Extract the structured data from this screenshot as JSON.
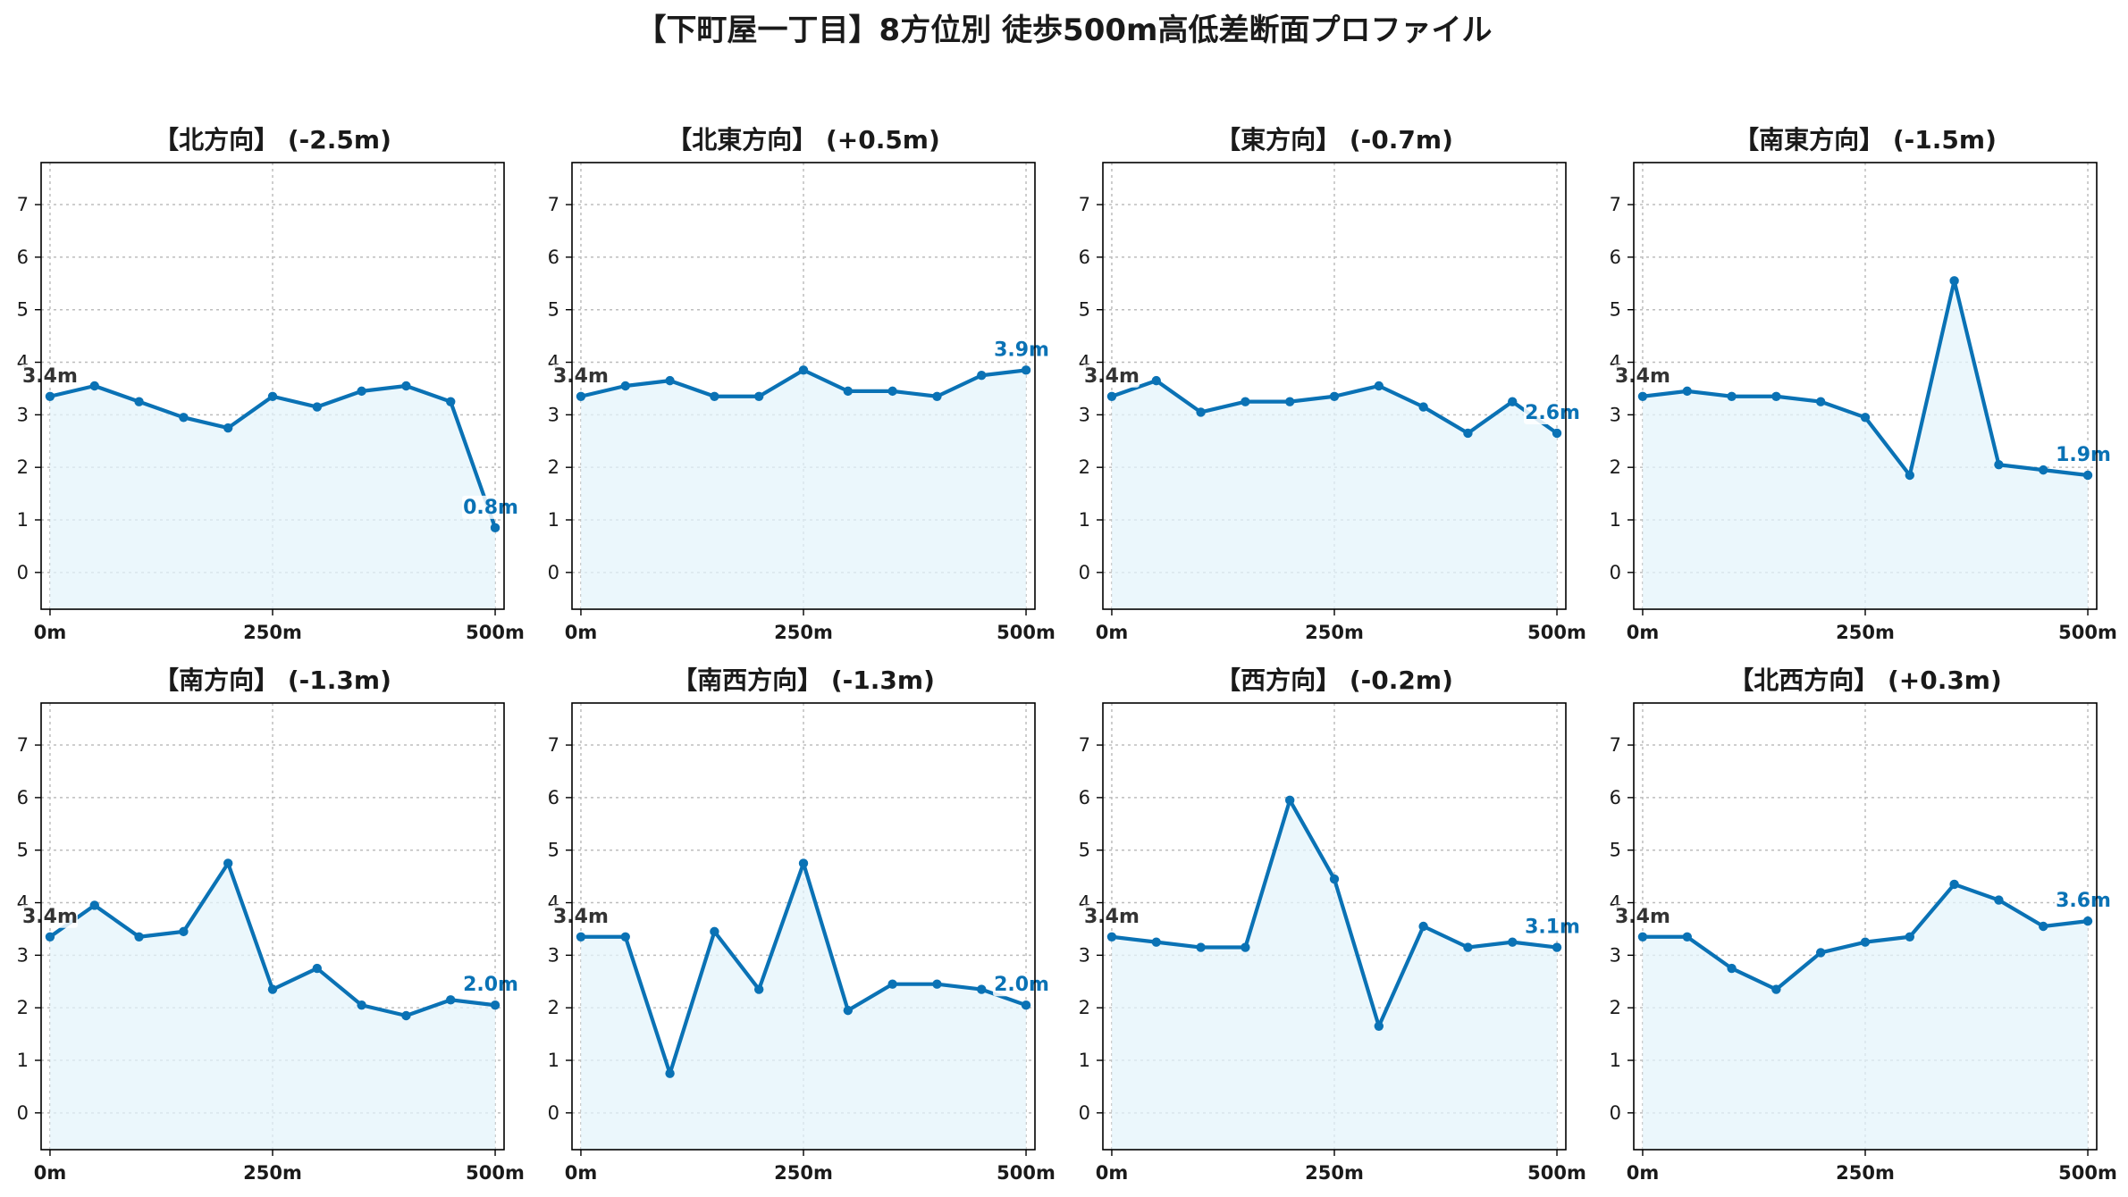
{
  "title": "【下町屋一丁目】8方位別 徒歩500m高低差断面プロファイル",
  "colors": {
    "line": "#0a72b5",
    "fill": "#e4f4fb",
    "start_label": "#333333"
  },
  "chart_data": [
    {
      "type": "area",
      "title": "【北方向】 (-2.5m)",
      "x": [
        0,
        50,
        100,
        150,
        200,
        250,
        300,
        350,
        400,
        450,
        500
      ],
      "values": [
        3.35,
        3.55,
        3.25,
        2.95,
        2.75,
        3.35,
        3.15,
        3.45,
        3.55,
        3.25,
        0.85
      ],
      "start_label": "3.4m",
      "end_label": "0.8m",
      "xticks": [
        "0m",
        "250m",
        "500m"
      ],
      "yticks": [
        "0",
        "1",
        "2",
        "3",
        "4",
        "5",
        "6",
        "7"
      ],
      "xlim": [
        -10,
        510
      ],
      "ylim": [
        -0.7,
        7.8
      ],
      "grid": true
    },
    {
      "type": "area",
      "title": "【北東方向】 (+0.5m)",
      "x": [
        0,
        50,
        100,
        150,
        200,
        250,
        300,
        350,
        400,
        450,
        500
      ],
      "values": [
        3.35,
        3.55,
        3.65,
        3.35,
        3.35,
        3.85,
        3.45,
        3.45,
        3.35,
        3.75,
        3.85
      ],
      "start_label": "3.4m",
      "end_label": "3.9m",
      "xticks": [
        "0m",
        "250m",
        "500m"
      ],
      "yticks": [
        "0",
        "1",
        "2",
        "3",
        "4",
        "5",
        "6",
        "7"
      ],
      "xlim": [
        -10,
        510
      ],
      "ylim": [
        -0.7,
        7.8
      ],
      "grid": true
    },
    {
      "type": "area",
      "title": "【東方向】 (-0.7m)",
      "x": [
        0,
        50,
        100,
        150,
        200,
        250,
        300,
        350,
        400,
        450,
        500
      ],
      "values": [
        3.35,
        3.65,
        3.05,
        3.25,
        3.25,
        3.35,
        3.55,
        3.15,
        2.65,
        3.25,
        2.65
      ],
      "start_label": "3.4m",
      "end_label": "2.6m",
      "xticks": [
        "0m",
        "250m",
        "500m"
      ],
      "yticks": [
        "0",
        "1",
        "2",
        "3",
        "4",
        "5",
        "6",
        "7"
      ],
      "xlim": [
        -10,
        510
      ],
      "ylim": [
        -0.7,
        7.8
      ],
      "grid": true
    },
    {
      "type": "area",
      "title": "【南東方向】 (-1.5m)",
      "x": [
        0,
        50,
        100,
        150,
        200,
        250,
        300,
        350,
        400,
        450,
        500
      ],
      "values": [
        3.35,
        3.45,
        3.35,
        3.35,
        3.25,
        2.95,
        1.85,
        5.55,
        2.05,
        1.95,
        1.85
      ],
      "start_label": "3.4m",
      "end_label": "1.9m",
      "xticks": [
        "0m",
        "250m",
        "500m"
      ],
      "yticks": [
        "0",
        "1",
        "2",
        "3",
        "4",
        "5",
        "6",
        "7"
      ],
      "xlim": [
        -10,
        510
      ],
      "ylim": [
        -0.7,
        7.8
      ],
      "grid": true
    },
    {
      "type": "area",
      "title": "【南方向】 (-1.3m)",
      "x": [
        0,
        50,
        100,
        150,
        200,
        250,
        300,
        350,
        400,
        450,
        500
      ],
      "values": [
        3.35,
        3.95,
        3.35,
        3.45,
        4.75,
        2.35,
        2.75,
        2.05,
        1.85,
        2.15,
        2.05
      ],
      "start_label": "3.4m",
      "end_label": "2.0m",
      "xticks": [
        "0m",
        "250m",
        "500m"
      ],
      "yticks": [
        "0",
        "1",
        "2",
        "3",
        "4",
        "5",
        "6",
        "7"
      ],
      "xlim": [
        -10,
        510
      ],
      "ylim": [
        -0.7,
        7.8
      ],
      "grid": true
    },
    {
      "type": "area",
      "title": "【南西方向】 (-1.3m)",
      "x": [
        0,
        50,
        100,
        150,
        200,
        250,
        300,
        350,
        400,
        450,
        500
      ],
      "values": [
        3.35,
        3.35,
        0.75,
        3.45,
        2.35,
        4.75,
        1.95,
        2.45,
        2.45,
        2.35,
        2.05
      ],
      "start_label": "3.4m",
      "end_label": "2.0m",
      "xticks": [
        "0m",
        "250m",
        "500m"
      ],
      "yticks": [
        "0",
        "1",
        "2",
        "3",
        "4",
        "5",
        "6",
        "7"
      ],
      "xlim": [
        -10,
        510
      ],
      "ylim": [
        -0.7,
        7.8
      ],
      "grid": true
    },
    {
      "type": "area",
      "title": "【西方向】 (-0.2m)",
      "x": [
        0,
        50,
        100,
        150,
        200,
        250,
        300,
        350,
        400,
        450,
        500
      ],
      "values": [
        3.35,
        3.25,
        3.15,
        3.15,
        5.95,
        4.45,
        1.65,
        3.55,
        3.15,
        3.25,
        3.15
      ],
      "start_label": "3.4m",
      "end_label": "3.1m",
      "xticks": [
        "0m",
        "250m",
        "500m"
      ],
      "yticks": [
        "0",
        "1",
        "2",
        "3",
        "4",
        "5",
        "6",
        "7"
      ],
      "xlim": [
        -10,
        510
      ],
      "ylim": [
        -0.7,
        7.8
      ],
      "grid": true
    },
    {
      "type": "area",
      "title": "【北西方向】 (+0.3m)",
      "x": [
        0,
        50,
        100,
        150,
        200,
        250,
        300,
        350,
        400,
        450,
        500
      ],
      "values": [
        3.35,
        3.35,
        2.75,
        2.35,
        3.05,
        3.25,
        3.35,
        4.35,
        4.05,
        3.55,
        3.65
      ],
      "start_label": "3.4m",
      "end_label": "3.6m",
      "xticks": [
        "0m",
        "250m",
        "500m"
      ],
      "yticks": [
        "0",
        "1",
        "2",
        "3",
        "4",
        "5",
        "6",
        "7"
      ],
      "xlim": [
        -10,
        510
      ],
      "ylim": [
        -0.7,
        7.8
      ],
      "grid": true
    }
  ]
}
